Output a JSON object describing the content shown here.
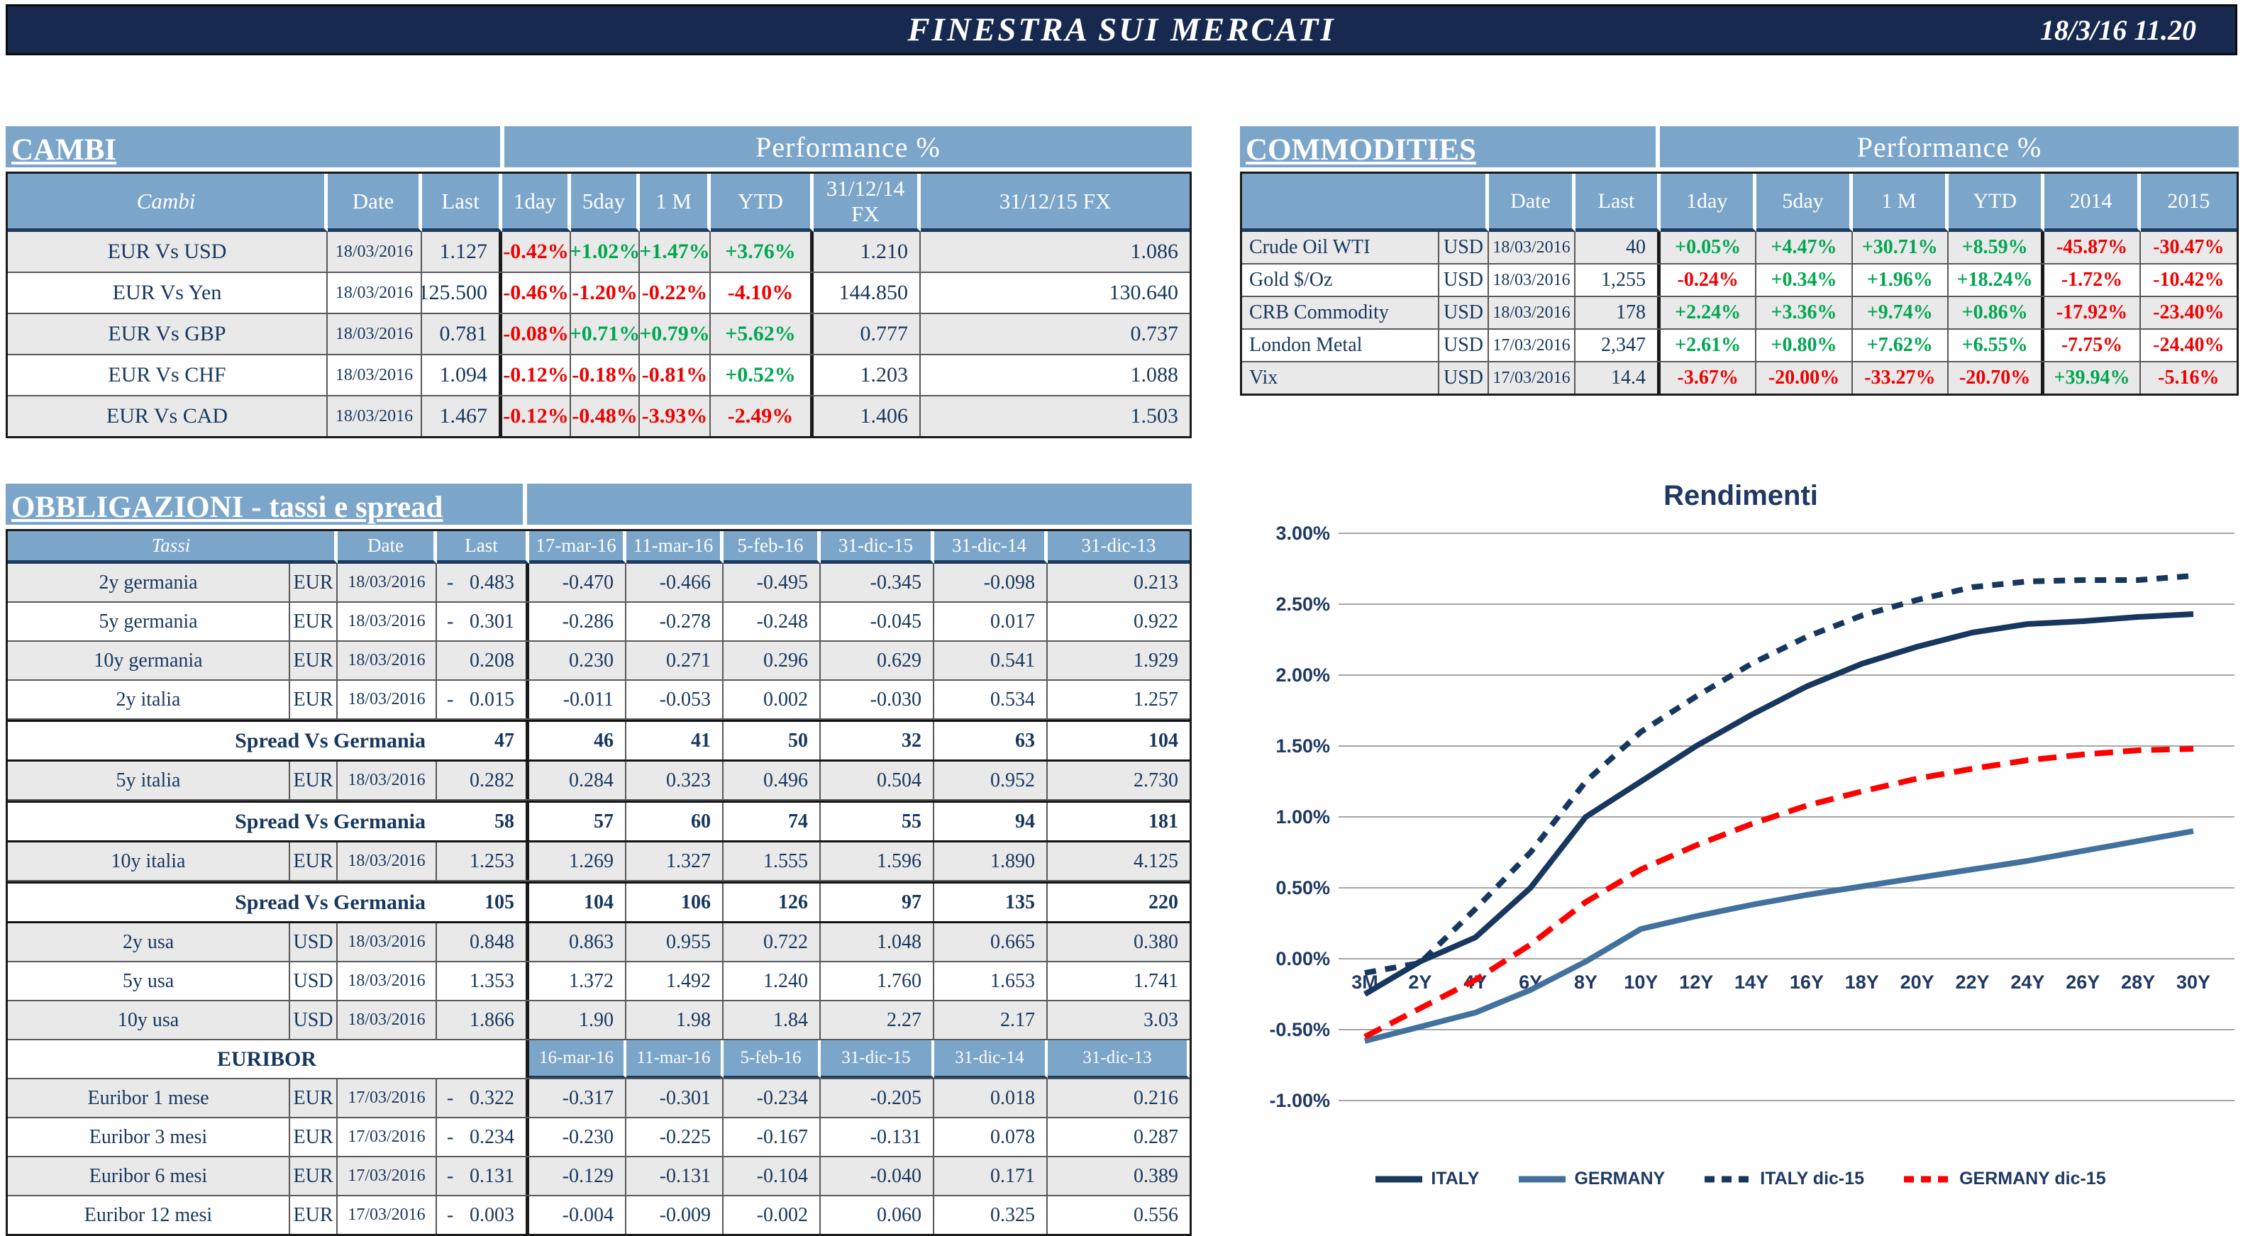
{
  "header": {
    "title": "FINESTRA SUI MERCATI",
    "datetime": "18/3/16 11.20"
  },
  "colors": {
    "topbar_bg": "#17294E",
    "header_cell_bg": "#7CA5CA",
    "navy_text": "#17375E",
    "positive": "#00A651",
    "negative": "#F00000",
    "row_shade": "#E9E9E9",
    "italy_line": "#17375E",
    "germany_line": "#41719C",
    "germany_dec_line": "#FF0000"
  },
  "cambi": {
    "section_title": "CAMBI",
    "perf_title": "Performance %",
    "columns": [
      "Cambi",
      "Date",
      "Last",
      "1day",
      "5day",
      "1 M",
      "YTD",
      "31/12/14 FX",
      "31/12/15  FX"
    ],
    "rows": [
      {
        "name": "EUR Vs USD",
        "date": "18/03/2016",
        "last": "1.127",
        "perf": [
          "-0.42%",
          "+1.02%",
          "+1.47%",
          "+3.76%"
        ],
        "fx14": "1.210",
        "fx15": "1.086",
        "shade": true
      },
      {
        "name": "EUR Vs Yen",
        "date": "18/03/2016",
        "last": "125.500",
        "perf": [
          "-0.46%",
          "-1.20%",
          "-0.22%",
          "-4.10%"
        ],
        "fx14": "144.850",
        "fx15": "130.640",
        "shade": false
      },
      {
        "name": "EUR Vs GBP",
        "date": "18/03/2016",
        "last": "0.781",
        "perf": [
          "-0.08%",
          "+0.71%",
          "+0.79%",
          "+5.62%"
        ],
        "fx14": "0.777",
        "fx15": "0.737",
        "shade": true
      },
      {
        "name": "EUR Vs CHF",
        "date": "18/03/2016",
        "last": "1.094",
        "perf": [
          "-0.12%",
          "-0.18%",
          "-0.81%",
          "+0.52%"
        ],
        "fx14": "1.203",
        "fx15": "1.088",
        "shade": false
      },
      {
        "name": "EUR Vs CAD",
        "date": "18/03/2016",
        "last": "1.467",
        "perf": [
          "-0.12%",
          "-0.48%",
          "-3.93%",
          "-2.49%"
        ],
        "fx14": "1.406",
        "fx15": "1.503",
        "shade": true
      }
    ]
  },
  "commodities": {
    "section_title": "COMMODITIES",
    "perf_title": "Performance %",
    "columns": [
      "",
      "Date",
      "Last",
      "1day",
      "5day",
      "1 M",
      "YTD",
      "2014",
      "2015"
    ],
    "rows": [
      {
        "name": "Crude Oil WTI",
        "ccy": "USD",
        "date": "18/03/2016",
        "last": "40",
        "perf": [
          "+0.05%",
          "+4.47%",
          "+30.71%",
          "+8.59%",
          "-45.87%",
          "-30.47%"
        ],
        "shade": true
      },
      {
        "name": "Gold $/Oz",
        "ccy": "USD",
        "date": "18/03/2016",
        "last": "1,255",
        "perf": [
          "-0.24%",
          "+0.34%",
          "+1.96%",
          "+18.24%",
          "-1.72%",
          "-10.42%"
        ],
        "shade": false
      },
      {
        "name": "CRB Commodity",
        "ccy": "USD",
        "date": "18/03/2016",
        "last": "178",
        "perf": [
          "+2.24%",
          "+3.36%",
          "+9.74%",
          "+0.86%",
          "-17.92%",
          "-23.40%"
        ],
        "shade": true
      },
      {
        "name": "London Metal",
        "ccy": "USD",
        "date": "17/03/2016",
        "last": "2,347",
        "perf": [
          "+2.61%",
          "+0.80%",
          "+7.62%",
          "+6.55%",
          "-7.75%",
          "-24.40%"
        ],
        "shade": false
      },
      {
        "name": "Vix",
        "ccy": "USD",
        "date": "17/03/2016",
        "last": "14.4",
        "perf": [
          "-3.67%",
          "-20.00%",
          "-33.27%",
          "-20.70%",
          "+39.94%",
          "-5.16%"
        ],
        "shade": true
      }
    ]
  },
  "obbligazioni": {
    "section_title": "OBBLIGAZIONI - tassi e spread",
    "header": {
      "tassi": "Tassi",
      "date": "Date",
      "last": "Last",
      "dates": [
        "17-mar-16",
        "11-mar-16",
        "5-feb-16",
        "31-dic-15",
        "31-dic-14",
        "31-dic-13"
      ]
    },
    "rows": [
      {
        "type": "rate",
        "name": "2y germania",
        "ccy": "EUR",
        "date": "18/03/2016",
        "last_neg": true,
        "last": "0.483",
        "values": [
          "-0.470",
          "-0.466",
          "-0.495",
          "-0.345",
          "-0.098",
          "0.213"
        ],
        "shade": true
      },
      {
        "type": "rate",
        "name": "5y germania",
        "ccy": "EUR",
        "date": "18/03/2016",
        "last_neg": true,
        "last": "0.301",
        "values": [
          "-0.286",
          "-0.278",
          "-0.248",
          "-0.045",
          "0.017",
          "0.922"
        ],
        "shade": false
      },
      {
        "type": "rate",
        "name": "10y germania",
        "ccy": "EUR",
        "date": "18/03/2016",
        "last_neg": false,
        "last": "0.208",
        "values": [
          "0.230",
          "0.271",
          "0.296",
          "0.629",
          "0.541",
          "1.929"
        ],
        "shade": true
      },
      {
        "type": "rate",
        "name": "2y italia",
        "ccy": "EUR",
        "date": "18/03/2016",
        "last_neg": true,
        "last": "0.015",
        "values": [
          "-0.011",
          "-0.053",
          "0.002",
          "-0.030",
          "0.534",
          "1.257"
        ],
        "shade": false
      },
      {
        "type": "spread",
        "name": "Spread Vs Germania",
        "last": "47",
        "values": [
          "46",
          "41",
          "50",
          "32",
          "63",
          "104"
        ],
        "shade": false
      },
      {
        "type": "rate",
        "name": "5y italia",
        "ccy": "EUR",
        "date": "18/03/2016",
        "last_neg": false,
        "last": "0.282",
        "values": [
          "0.284",
          "0.323",
          "0.496",
          "0.504",
          "0.952",
          "2.730"
        ],
        "shade": true
      },
      {
        "type": "spread",
        "name": "Spread Vs Germania",
        "last": "58",
        "values": [
          "57",
          "60",
          "74",
          "55",
          "94",
          "181"
        ],
        "shade": false
      },
      {
        "type": "rate",
        "name": "10y italia",
        "ccy": "EUR",
        "date": "18/03/2016",
        "last_neg": false,
        "last": "1.253",
        "values": [
          "1.269",
          "1.327",
          "1.555",
          "1.596",
          "1.890",
          "4.125"
        ],
        "shade": true
      },
      {
        "type": "spread",
        "name": "Spread Vs Germania",
        "last": "105",
        "values": [
          "104",
          "106",
          "126",
          "97",
          "135",
          "220"
        ],
        "shade": false
      },
      {
        "type": "rate",
        "name": "2y usa",
        "ccy": "USD",
        "date": "18/03/2016",
        "last_neg": false,
        "last": "0.848",
        "values": [
          "0.863",
          "0.955",
          "0.722",
          "1.048",
          "0.665",
          "0.380"
        ],
        "shade": true
      },
      {
        "type": "rate",
        "name": "5y usa",
        "ccy": "USD",
        "date": "18/03/2016",
        "last_neg": false,
        "last": "1.353",
        "values": [
          "1.372",
          "1.492",
          "1.240",
          "1.760",
          "1.653",
          "1.741"
        ],
        "shade": false
      },
      {
        "type": "rate",
        "name": "10y usa",
        "ccy": "USD",
        "date": "18/03/2016",
        "last_neg": false,
        "last": "1.866",
        "values": [
          "1.90",
          "1.98",
          "1.84",
          "2.27",
          "2.17",
          "3.03"
        ],
        "shade": true
      },
      {
        "type": "subheader",
        "name": "EURIBOR",
        "dates": [
          "16-mar-16",
          "11-mar-16",
          "5-feb-16",
          "31-dic-15",
          "31-dic-14",
          "31-dic-13"
        ],
        "shade": false
      },
      {
        "type": "rate",
        "name": "Euribor 1 mese",
        "ccy": "EUR",
        "date": "17/03/2016",
        "last_neg": true,
        "last": "0.322",
        "values": [
          "-0.317",
          "-0.301",
          "-0.234",
          "-0.205",
          "0.018",
          "0.216"
        ],
        "shade": true
      },
      {
        "type": "rate",
        "name": "Euribor 3 mesi",
        "ccy": "EUR",
        "date": "17/03/2016",
        "last_neg": true,
        "last": "0.234",
        "values": [
          "-0.230",
          "-0.225",
          "-0.167",
          "-0.131",
          "0.078",
          "0.287"
        ],
        "shade": false
      },
      {
        "type": "rate",
        "name": "Euribor 6 mesi",
        "ccy": "EUR",
        "date": "17/03/2016",
        "last_neg": true,
        "last": "0.131",
        "values": [
          "-0.129",
          "-0.131",
          "-0.104",
          "-0.040",
          "0.171",
          "0.389"
        ],
        "shade": true
      },
      {
        "type": "rate",
        "name": "Euribor 12 mesi",
        "ccy": "EUR",
        "date": "17/03/2016",
        "last_neg": true,
        "last": "0.003",
        "values": [
          "-0.004",
          "-0.009",
          "-0.002",
          "0.060",
          "0.325",
          "0.556"
        ],
        "shade": false
      }
    ]
  },
  "chart_data": {
    "type": "line",
    "title": "Rendimenti",
    "units": "percent",
    "x_categories": [
      "3M",
      "2Y",
      "4Y",
      "6Y",
      "8Y",
      "10Y",
      "12Y",
      "14Y",
      "16Y",
      "18Y",
      "20Y",
      "22Y",
      "24Y",
      "26Y",
      "28Y",
      "30Y"
    ],
    "ylim": [
      -1.0,
      3.0
    ],
    "y_ticks": [
      3.0,
      2.5,
      2.0,
      1.5,
      1.0,
      0.5,
      0.0,
      -0.5,
      -1.0
    ],
    "y_tick_labels": [
      "3.00%",
      "2.50%",
      "2.00%",
      "1.50%",
      "1.00%",
      "0.50%",
      "0.00%",
      "-0.50%",
      "-1.00%"
    ],
    "grid": true,
    "legend_position": "bottom",
    "series": [
      {
        "name": "ITALY",
        "color": "#17375E",
        "dash": null,
        "values": [
          -0.25,
          -0.02,
          0.15,
          0.5,
          1.0,
          1.25,
          1.5,
          1.72,
          1.92,
          2.08,
          2.2,
          2.3,
          2.36,
          2.38,
          2.41,
          2.43
        ]
      },
      {
        "name": "GERMANY",
        "color": "#41719C",
        "dash": null,
        "values": [
          -0.58,
          -0.48,
          -0.38,
          -0.22,
          -0.02,
          0.21,
          0.3,
          0.38,
          0.45,
          0.51,
          0.57,
          0.63,
          0.69,
          0.76,
          0.83,
          0.9
        ]
      },
      {
        "name": "ITALY dic-15",
        "color": "#17375E",
        "dash": "16 13",
        "values": [
          -0.1,
          -0.03,
          0.35,
          0.75,
          1.25,
          1.6,
          1.85,
          2.08,
          2.27,
          2.42,
          2.53,
          2.62,
          2.66,
          2.67,
          2.67,
          2.7
        ]
      },
      {
        "name": "GERMANY dic-15",
        "color": "#FF0000",
        "dash": "26 14",
        "values": [
          -0.55,
          -0.35,
          -0.15,
          0.1,
          0.4,
          0.63,
          0.8,
          0.95,
          1.08,
          1.18,
          1.27,
          1.34,
          1.4,
          1.44,
          1.47,
          1.48
        ]
      }
    ]
  }
}
